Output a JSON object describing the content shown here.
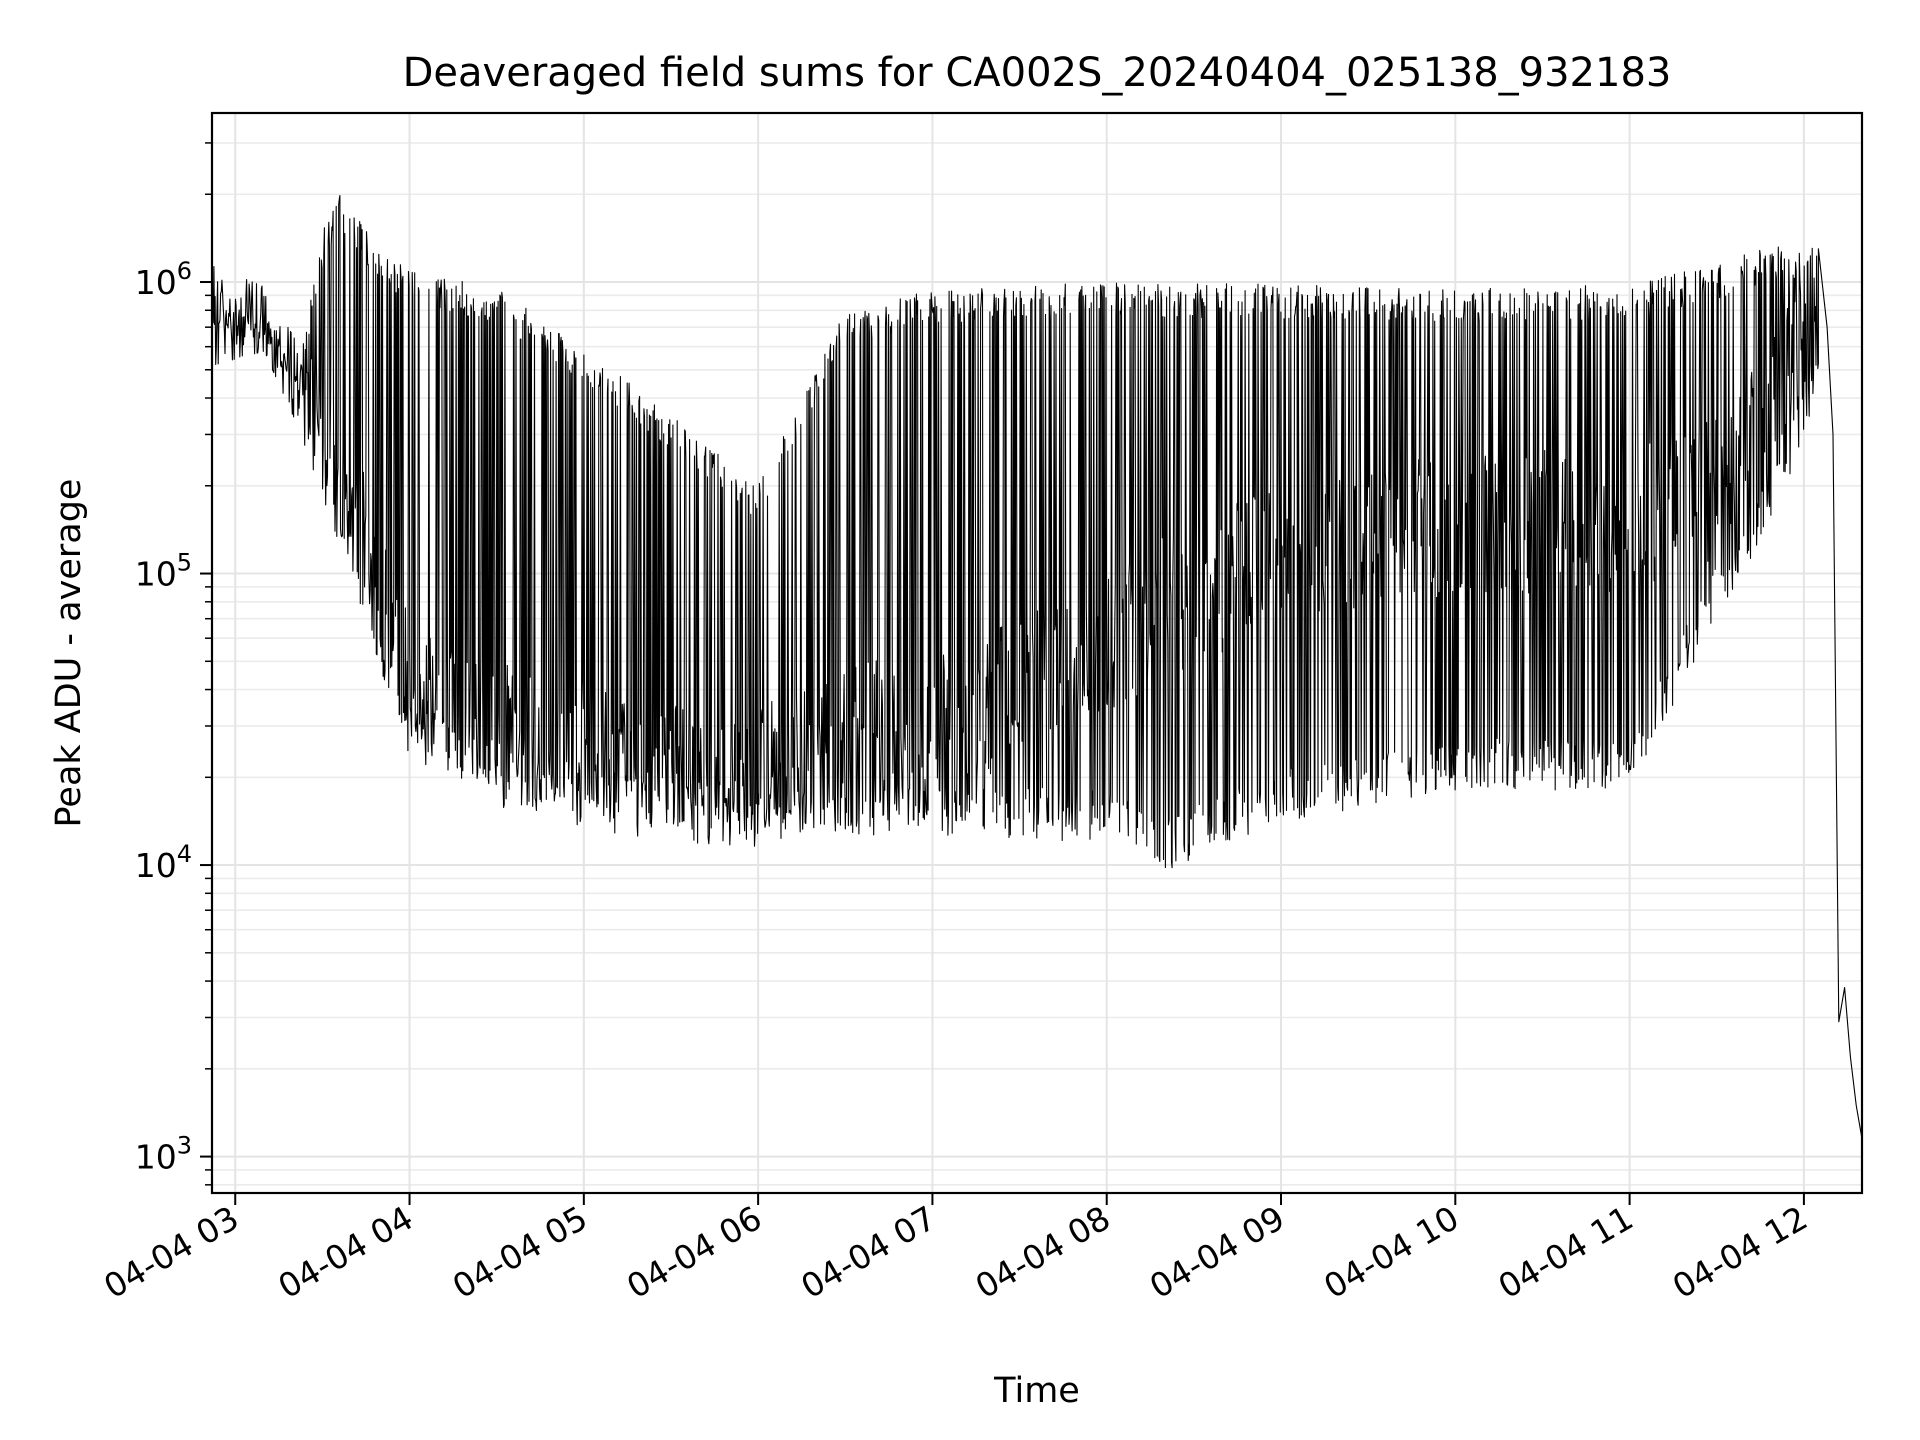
{
  "chart_data": {
    "type": "line",
    "title": "Deaveraged field sums for CA002S_20240404_025138_932183",
    "xlabel": "Time",
    "ylabel": "Peak ADU - average",
    "y_scale": "log",
    "ylim": [
      750,
      3800000
    ],
    "xlim": [
      "04-04 02:52",
      "04-04 12:20"
    ],
    "grid": true,
    "x_ticks": [
      {
        "t": 3,
        "label": "04-04 03"
      },
      {
        "t": 4,
        "label": "04-04 04"
      },
      {
        "t": 5,
        "label": "04-04 05"
      },
      {
        "t": 6,
        "label": "04-04 06"
      },
      {
        "t": 7,
        "label": "04-04 07"
      },
      {
        "t": 8,
        "label": "04-04 08"
      },
      {
        "t": 9,
        "label": "04-04 09"
      },
      {
        "t": 10,
        "label": "04-04 10"
      },
      {
        "t": 11,
        "label": "04-04 11"
      },
      {
        "t": 12,
        "label": "04-04 12"
      }
    ],
    "y_ticks": [
      {
        "v": 1000,
        "label": "10",
        "exp": "3"
      },
      {
        "v": 10000,
        "label": "10",
        "exp": "4"
      },
      {
        "v": 100000,
        "label": "10",
        "exp": "5"
      },
      {
        "v": 1000000,
        "label": "10",
        "exp": "6"
      }
    ],
    "line_color": "#000000",
    "series": [
      {
        "upper_envelope": [
          [
            "04-04 02:52",
            950000
          ],
          [
            "04-04 03:10",
            800000
          ],
          [
            "04-04 03:22",
            500000
          ],
          [
            "04-04 03:30",
            1500000
          ],
          [
            "04-04 03:36",
            2000000
          ],
          [
            "04-04 03:50",
            1300000
          ],
          [
            "04-04 04:00",
            1100000
          ],
          [
            "04-04 04:30",
            950000
          ],
          [
            "04-04 05:00",
            600000
          ],
          [
            "04-04 05:30",
            350000
          ],
          [
            "04-04 06:00",
            200000
          ],
          [
            "04-04 06:30",
            800000
          ],
          [
            "04-04 07:00",
            950000
          ],
          [
            "04-04 08:00",
            1000000
          ],
          [
            "04-04 09:00",
            980000
          ],
          [
            "04-04 10:00",
            950000
          ],
          [
            "04-04 11:00",
            980000
          ],
          [
            "04-04 11:30",
            1150000
          ],
          [
            "04-04 11:50",
            1350000
          ],
          [
            "04-04 12:05",
            1300000
          ]
        ],
        "median": [
          [
            "04-04 02:52",
            700000
          ],
          [
            "04-04 03:10",
            720000
          ],
          [
            "04-04 03:22",
            400000
          ],
          [
            "04-04 03:35",
            220000
          ],
          [
            "04-04 03:50",
            90000
          ],
          [
            "04-04 04:00",
            40000
          ],
          [
            "04-04 04:30",
            28000
          ],
          [
            "04-04 05:00",
            24000
          ],
          [
            "04-04 05:30",
            20000
          ],
          [
            "04-04 05:55",
            19000
          ],
          [
            "04-04 06:30",
            28000
          ],
          [
            "04-04 07:00",
            30000
          ],
          [
            "04-04 07:30",
            40000
          ],
          [
            "04-04 08:00",
            60000
          ],
          [
            "04-04 09:00",
            120000
          ],
          [
            "04-04 10:00",
            150000
          ],
          [
            "04-04 11:00",
            150000
          ],
          [
            "04-04 11:30",
            200000
          ],
          [
            "04-04 11:50",
            400000
          ],
          [
            "04-04 12:05",
            900000
          ]
        ],
        "lower_envelope": [
          [
            "04-04 02:52",
            580000
          ],
          [
            "04-04 03:10",
            650000
          ],
          [
            "04-04 03:22",
            350000
          ],
          [
            "04-04 03:35",
            150000
          ],
          [
            "04-04 03:55",
            30000
          ],
          [
            "04-04 04:30",
            16000
          ],
          [
            "04-04 05:00",
            15000
          ],
          [
            "04-04 05:30",
            13500
          ],
          [
            "04-04 06:00",
            13000
          ],
          [
            "04-04 06:30",
            12500
          ],
          [
            "04-04 07:00",
            12500
          ],
          [
            "04-04 08:00",
            12000
          ],
          [
            "04-04 08:20",
            9500
          ],
          [
            "04-04 09:00",
            14000
          ],
          [
            "04-04 10:00",
            18000
          ],
          [
            "04-04 11:00",
            18000
          ],
          [
            "04-04 11:30",
            70000
          ],
          [
            "04-04 11:50",
            150000
          ],
          [
            "04-04 12:05",
            400000
          ]
        ],
        "final_drop": [
          [
            "04-04 12:05",
            1300000
          ],
          [
            "04-04 12:08",
            700000
          ],
          [
            "04-04 12:10",
            300000
          ],
          [
            "04-04 12:12",
            2900
          ],
          [
            "04-04 12:14",
            3800
          ],
          [
            "04-04 12:16",
            2200
          ],
          [
            "04-04 12:18",
            1500
          ],
          [
            "04-04 12:20",
            1150
          ]
        ]
      }
    ]
  }
}
